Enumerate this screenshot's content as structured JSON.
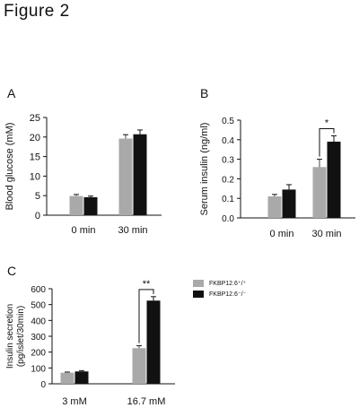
{
  "figure": {
    "title": "Figure 2"
  },
  "colors": {
    "genotype1": "#a9a9a9",
    "genotype2": "#111111"
  },
  "legend": [
    {
      "label": "FKBP12.6⁺/⁺",
      "color": "#a9a9a9"
    },
    {
      "label": "FKBP12.6⁻/⁻",
      "color": "#111111"
    }
  ],
  "chart_data": [
    {
      "panel": "A",
      "type": "bar",
      "ylabel": "Blood glucose (mM)",
      "categories": [
        "0 min",
        "30 min"
      ],
      "series": [
        {
          "values": [
            4.9,
            19.6
          ],
          "errors": [
            0.4,
            1.0
          ]
        },
        {
          "values": [
            4.6,
            20.7
          ],
          "errors": [
            0.3,
            1.1
          ]
        }
      ],
      "ylim": [
        0,
        25
      ],
      "yticks": [
        "0",
        "5",
        "10",
        "15",
        "20",
        "25"
      ],
      "significance": []
    },
    {
      "panel": "B",
      "type": "bar",
      "ylabel": "Serum insulin (ng/ml)",
      "categories": [
        "0 min",
        "30 min"
      ],
      "series": [
        {
          "values": [
            0.11,
            0.26
          ],
          "errors": [
            0.01,
            0.04
          ]
        },
        {
          "values": [
            0.145,
            0.39
          ],
          "errors": [
            0.025,
            0.03
          ]
        }
      ],
      "ylim": [
        0,
        0.5
      ],
      "yticks": [
        "0.0",
        "0.1",
        "0.2",
        "0.3",
        "0.4",
        "0.5"
      ],
      "significance": [
        {
          "category": 1,
          "mark": "*"
        }
      ]
    },
    {
      "panel": "C",
      "type": "bar",
      "ylabel": "Insulin secretion",
      "ylabel2": "(pg/islet/30min)",
      "categories": [
        "3 mM",
        "16.7 mM"
      ],
      "series": [
        {
          "values": [
            70,
            225
          ],
          "errors": [
            4,
            15
          ]
        },
        {
          "values": [
            78,
            525
          ],
          "errors": [
            5,
            25
          ]
        }
      ],
      "ylim": [
        0,
        600
      ],
      "yticks": [
        "0",
        "100",
        "200",
        "300",
        "400",
        "500",
        "600"
      ],
      "significance": [
        {
          "category": 1,
          "mark": "**"
        }
      ]
    }
  ]
}
